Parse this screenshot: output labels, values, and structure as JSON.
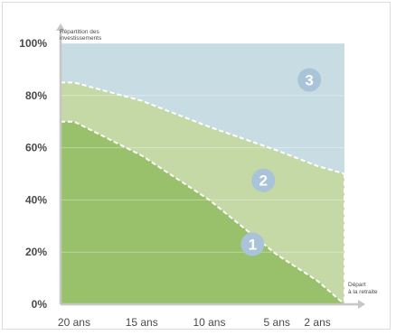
{
  "chart_data": {
    "type": "area",
    "title": "",
    "ylabel": "Répartition des investissements",
    "xlabel": "Départ à la retraite",
    "ylim": [
      0,
      100
    ],
    "yticks": [
      "0%",
      "20%",
      "40%",
      "60%",
      "80%",
      "100%"
    ],
    "xticks": [
      "20 ans",
      "15 ans",
      "10 ans",
      "5 ans",
      "2 ans"
    ],
    "x_years_before_retirement": [
      21,
      20,
      15,
      10,
      5,
      2,
      0
    ],
    "series": [
      {
        "name": "1",
        "upper_boundary": [
          70,
          70,
          57,
          40,
          19,
          9,
          0
        ],
        "color": "#99c06a"
      },
      {
        "name": "2",
        "upper_boundary": [
          85,
          85,
          78,
          68,
          59,
          53,
          50
        ],
        "color": "#c5d9a6"
      },
      {
        "name": "3",
        "upper_boundary": [
          100,
          100,
          100,
          100,
          100,
          100,
          100
        ],
        "color": "#c7dde3"
      }
    ],
    "grid": true,
    "badge_color": "#a9c3d8"
  }
}
